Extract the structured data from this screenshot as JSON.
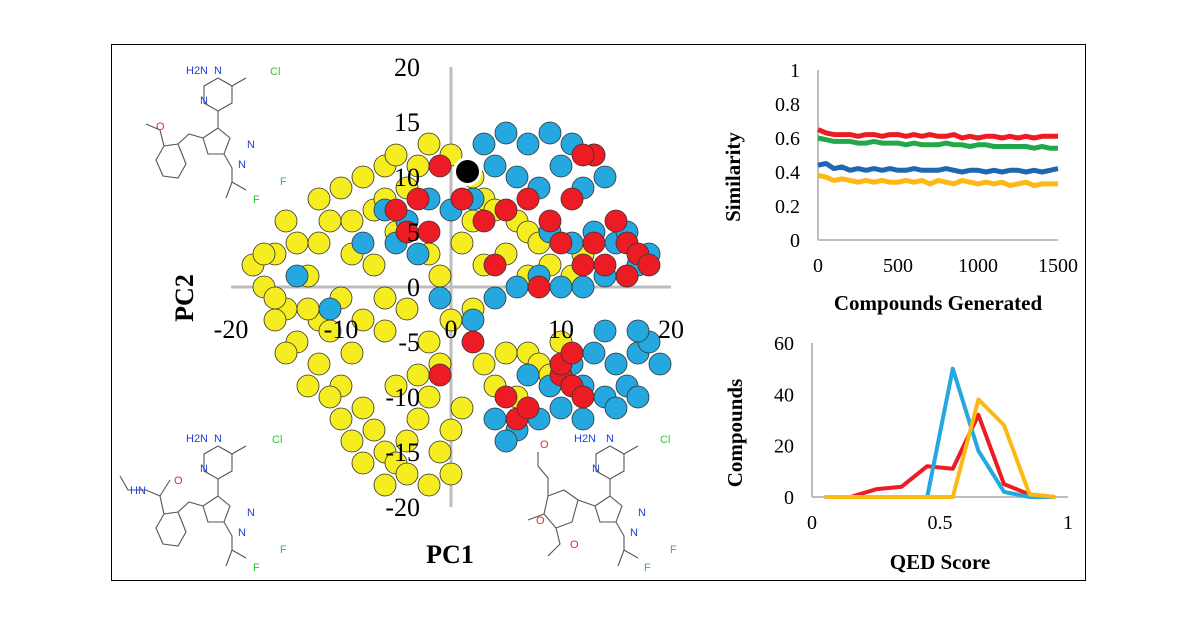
{
  "colors": {
    "yellow": "#f5ed1f",
    "blue": "#25a8e0",
    "red": "#ed1c24",
    "green": "#22a84a",
    "orange": "#fcb813",
    "navy": "#1f67b0",
    "black": "#000000"
  },
  "molecules": {
    "top_left": {
      "labels": [
        "H2N",
        "N",
        "N",
        "Cl",
        "O",
        "N",
        "N",
        "F",
        "F"
      ]
    },
    "bottom_left": {
      "labels": [
        "H2N",
        "N",
        "N",
        "Cl",
        "O",
        "HN",
        "N",
        "N",
        "F",
        "F"
      ]
    },
    "bottom_mid": {
      "labels": [
        "O",
        "H2N",
        "N",
        "N",
        "Cl",
        "O",
        "O",
        "N",
        "N",
        "F",
        "F"
      ]
    }
  },
  "chart_data": [
    {
      "id": "pca",
      "type": "scatter",
      "xlabel": "PC1",
      "ylabel": "PC2",
      "xlim": [
        -20,
        20
      ],
      "ylim": [
        -20,
        20
      ],
      "x_ticks": [
        -20,
        -10,
        0,
        10,
        20
      ],
      "y_ticks": [
        20,
        15,
        10,
        5,
        0,
        -5,
        -10,
        -15,
        -20
      ],
      "series": [
        {
          "name": "yellow",
          "color": "yellow",
          "points": [
            [
              -18,
              2
            ],
            [
              -17,
              0
            ],
            [
              -16,
              3
            ],
            [
              -15,
              -2
            ],
            [
              -14,
              4
            ],
            [
              -13,
              1
            ],
            [
              -12,
              -3
            ],
            [
              -11,
              6
            ],
            [
              -10,
              -1
            ],
            [
              -9,
              3
            ],
            [
              -15,
              6
            ],
            [
              -12,
              8
            ],
            [
              -10,
              9
            ],
            [
              -8,
              10
            ],
            [
              -7,
              7
            ],
            [
              -6,
              11
            ],
            [
              -5,
              12
            ],
            [
              -4,
              9
            ],
            [
              -3,
              11
            ],
            [
              -2,
              13
            ],
            [
              0,
              12
            ],
            [
              2,
              10
            ],
            [
              3,
              8
            ],
            [
              4,
              7
            ],
            [
              6,
              6
            ],
            [
              7,
              5
            ],
            [
              8,
              4
            ],
            [
              -8,
              -3
            ],
            [
              -6,
              -4
            ],
            [
              -4,
              -2
            ],
            [
              -14,
              -5
            ],
            [
              -12,
              -7
            ],
            [
              -10,
              -9
            ],
            [
              -9,
              -6
            ],
            [
              -8,
              -11
            ],
            [
              -7,
              -13
            ],
            [
              -6,
              -15
            ],
            [
              -5,
              -16
            ],
            [
              -4,
              -14
            ],
            [
              -3,
              -12
            ],
            [
              -2,
              -10
            ],
            [
              -1,
              -15
            ],
            [
              0,
              -13
            ],
            [
              -10,
              -12
            ],
            [
              -11,
              -4
            ],
            [
              -13,
              -2
            ],
            [
              -16,
              -1
            ],
            [
              -17,
              3
            ],
            [
              -2,
              -5
            ],
            [
              0,
              -3
            ],
            [
              2,
              -2
            ],
            [
              3,
              2
            ],
            [
              1,
              4
            ],
            [
              -1,
              1
            ],
            [
              -3,
              -8
            ],
            [
              -5,
              -9
            ],
            [
              -6,
              -1
            ],
            [
              -2,
              3
            ],
            [
              5,
              -6
            ],
            [
              4,
              -9
            ],
            [
              6,
              -10
            ],
            [
              7,
              -6
            ],
            [
              8,
              -7
            ],
            [
              9,
              -8
            ],
            [
              10,
              -5
            ],
            [
              3,
              -7
            ],
            [
              -12,
              4
            ],
            [
              -9,
              6
            ],
            [
              -7,
              2
            ],
            [
              -5,
              5
            ],
            [
              -8,
              -16
            ],
            [
              -6,
              -18
            ],
            [
              -4,
              -17
            ],
            [
              -2,
              -18
            ],
            [
              0,
              -17
            ],
            [
              -9,
              -14
            ],
            [
              -11,
              -10
            ],
            [
              -13,
              -9
            ],
            [
              -15,
              -6
            ],
            [
              -16,
              -3
            ],
            [
              1,
              -11
            ],
            [
              -1,
              -7
            ],
            [
              2,
              6
            ],
            [
              5,
              3
            ],
            [
              7,
              1
            ],
            [
              9,
              2
            ],
            [
              11,
              1
            ],
            [
              12,
              3
            ],
            [
              -4,
              6
            ],
            [
              -6,
              8
            ]
          ]
        },
        {
          "name": "blue",
          "color": "blue",
          "points": [
            [
              3,
              13
            ],
            [
              5,
              14
            ],
            [
              7,
              13
            ],
            [
              9,
              14
            ],
            [
              11,
              13
            ],
            [
              13,
              12
            ],
            [
              14,
              10
            ],
            [
              12,
              9
            ],
            [
              10,
              11
            ],
            [
              8,
              9
            ],
            [
              6,
              10
            ],
            [
              4,
              11
            ],
            [
              2,
              8
            ],
            [
              0,
              7
            ],
            [
              -2,
              8
            ],
            [
              -4,
              6
            ],
            [
              -6,
              7
            ],
            [
              -5,
              4
            ],
            [
              -3,
              3
            ],
            [
              -8,
              4
            ],
            [
              -14,
              1
            ],
            [
              -11,
              -2
            ],
            [
              -1,
              -1
            ],
            [
              2,
              -3
            ],
            [
              4,
              -1
            ],
            [
              6,
              0
            ],
            [
              8,
              1
            ],
            [
              10,
              0
            ],
            [
              12,
              0
            ],
            [
              14,
              1
            ],
            [
              16,
              1
            ],
            [
              17,
              2
            ],
            [
              15,
              4
            ],
            [
              13,
              5
            ],
            [
              11,
              4
            ],
            [
              9,
              5
            ],
            [
              16,
              5
            ],
            [
              18,
              3
            ],
            [
              7,
              -8
            ],
            [
              9,
              -9
            ],
            [
              11,
              -7
            ],
            [
              13,
              -6
            ],
            [
              15,
              -7
            ],
            [
              17,
              -6
            ],
            [
              18,
              -5
            ],
            [
              16,
              -9
            ],
            [
              14,
              -10
            ],
            [
              12,
              -9
            ],
            [
              10,
              -11
            ],
            [
              8,
              -12
            ],
            [
              6,
              -13
            ],
            [
              4,
              -12
            ],
            [
              12,
              -12
            ],
            [
              15,
              -11
            ],
            [
              19,
              -7
            ],
            [
              17,
              -10
            ],
            [
              5,
              -14
            ],
            [
              14,
              -4
            ],
            [
              17,
              -4
            ]
          ]
        },
        {
          "name": "red",
          "color": "red",
          "points": [
            [
              -1,
              11
            ],
            [
              -3,
              8
            ],
            [
              -2,
              5
            ],
            [
              -5,
              7
            ],
            [
              -4,
              5
            ],
            [
              1,
              8
            ],
            [
              3,
              6
            ],
            [
              5,
              7
            ],
            [
              7,
              8
            ],
            [
              9,
              6
            ],
            [
              11,
              8
            ],
            [
              13,
              12
            ],
            [
              12,
              12
            ],
            [
              10,
              4
            ],
            [
              13,
              4
            ],
            [
              15,
              6
            ],
            [
              16,
              4
            ],
            [
              17,
              3
            ],
            [
              14,
              2
            ],
            [
              12,
              2
            ],
            [
              16,
              1
            ],
            [
              18,
              2
            ],
            [
              8,
              0
            ],
            [
              4,
              2
            ],
            [
              2,
              -5
            ],
            [
              -1,
              -8
            ],
            [
              5,
              -10
            ],
            [
              6,
              -12
            ],
            [
              7,
              -11
            ],
            [
              10,
              -8
            ],
            [
              11,
              -9
            ],
            [
              12,
              -10
            ],
            [
              10,
              -7
            ],
            [
              11,
              -6
            ]
          ]
        },
        {
          "name": "query",
          "color": "black",
          "points": [
            [
              1.5,
              10.5
            ]
          ]
        }
      ]
    },
    {
      "id": "similarity",
      "type": "line",
      "xlabel": "Compounds Generated",
      "ylabel": "Similarity",
      "xlim": [
        0,
        1500
      ],
      "ylim": [
        0,
        1
      ],
      "x_ticks": [
        0,
        500,
        1000,
        1500
      ],
      "y_ticks": [
        0,
        0.2,
        0.4,
        0.6,
        0.8,
        1
      ],
      "y_tick_labels": [
        "0",
        "0.2",
        "0.4",
        "0.6",
        "0.8",
        "1"
      ],
      "x": [
        0,
        50,
        100,
        150,
        200,
        250,
        300,
        350,
        400,
        450,
        500,
        550,
        600,
        650,
        700,
        750,
        800,
        850,
        900,
        950,
        1000,
        1050,
        1100,
        1150,
        1200,
        1250,
        1300,
        1350,
        1400,
        1450,
        1500
      ],
      "series": [
        {
          "name": "red",
          "color": "red",
          "values": [
            0.65,
            0.63,
            0.62,
            0.62,
            0.62,
            0.61,
            0.62,
            0.62,
            0.61,
            0.62,
            0.62,
            0.61,
            0.62,
            0.61,
            0.62,
            0.61,
            0.61,
            0.62,
            0.6,
            0.61,
            0.6,
            0.61,
            0.61,
            0.6,
            0.61,
            0.6,
            0.61,
            0.6,
            0.61,
            0.61,
            0.61
          ]
        },
        {
          "name": "green",
          "color": "green",
          "values": [
            0.6,
            0.59,
            0.58,
            0.58,
            0.58,
            0.57,
            0.57,
            0.58,
            0.57,
            0.57,
            0.57,
            0.56,
            0.57,
            0.56,
            0.56,
            0.56,
            0.57,
            0.56,
            0.56,
            0.55,
            0.56,
            0.56,
            0.55,
            0.55,
            0.55,
            0.55,
            0.55,
            0.54,
            0.55,
            0.54,
            0.54
          ]
        },
        {
          "name": "blue",
          "color": "navy",
          "values": [
            0.44,
            0.45,
            0.42,
            0.43,
            0.41,
            0.42,
            0.41,
            0.42,
            0.41,
            0.42,
            0.41,
            0.41,
            0.42,
            0.41,
            0.41,
            0.41,
            0.42,
            0.41,
            0.4,
            0.41,
            0.41,
            0.4,
            0.41,
            0.4,
            0.41,
            0.41,
            0.4,
            0.41,
            0.4,
            0.41,
            0.42
          ]
        },
        {
          "name": "orange",
          "color": "orange",
          "values": [
            0.38,
            0.37,
            0.35,
            0.36,
            0.35,
            0.34,
            0.35,
            0.34,
            0.35,
            0.34,
            0.34,
            0.35,
            0.34,
            0.35,
            0.33,
            0.35,
            0.34,
            0.33,
            0.35,
            0.34,
            0.33,
            0.34,
            0.33,
            0.34,
            0.32,
            0.33,
            0.34,
            0.32,
            0.33,
            0.33,
            0.33
          ]
        }
      ]
    },
    {
      "id": "qed",
      "type": "line",
      "xlabel": "QED Score",
      "ylabel": "Compounds",
      "xlim": [
        0,
        1
      ],
      "ylim": [
        0,
        60
      ],
      "x_ticks": [
        0,
        0.5,
        1
      ],
      "x_tick_labels": [
        "0",
        "0.5",
        "1"
      ],
      "y_ticks": [
        0,
        20,
        40,
        60
      ],
      "x": [
        0.05,
        0.15,
        0.25,
        0.35,
        0.45,
        0.55,
        0.65,
        0.75,
        0.85,
        0.95
      ],
      "series": [
        {
          "name": "red",
          "color": "red",
          "values": [
            0,
            0,
            3,
            4,
            12,
            11,
            32,
            5,
            1,
            0
          ]
        },
        {
          "name": "blue",
          "color": "blue",
          "values": [
            0,
            0,
            0,
            0,
            0,
            50,
            18,
            2,
            0,
            0
          ]
        },
        {
          "name": "orange",
          "color": "orange",
          "values": [
            0,
            0,
            0,
            0,
            0,
            0,
            38,
            28,
            1,
            0
          ]
        }
      ]
    }
  ]
}
